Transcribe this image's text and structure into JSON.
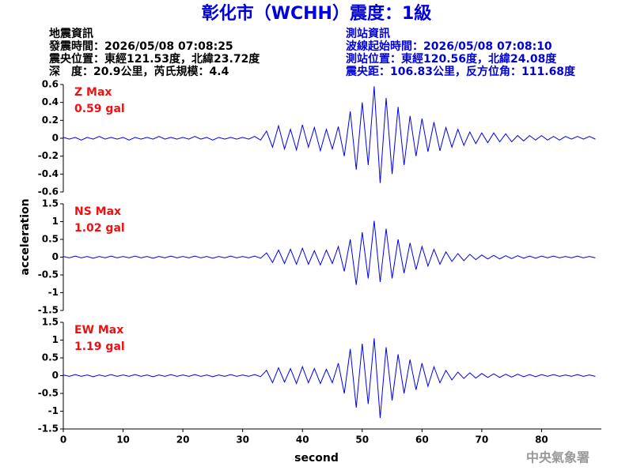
{
  "header": {
    "title": "彰化市（WCHH）震度：1級",
    "info_left": [
      "地震資訊",
      "發震時間：2026/05/08 07:08:25",
      "震央位置：東經121.53度，北緯23.72度",
      "深　度：20.9公里，芮氏規模：4.4"
    ],
    "info_right": [
      "測站資訊",
      "波線起始時間：2026/05/08 07:08:10",
      "測站位置：東經120.56度，北緯24.08度",
      "震央距：106.83公里，反方位角：111.68度"
    ],
    "watermark": "中央氣象署"
  },
  "chart_data": [
    {
      "type": "line",
      "annotations": [
        "Z Max",
        "0.59 gal"
      ],
      "color": "#0000ee",
      "xlim": [
        0,
        90
      ],
      "ylim": [
        -0.6,
        0.6
      ],
      "yticks": [
        0.6,
        0.4,
        0.2,
        0,
        -0.2,
        -0.4,
        -0.6
      ],
      "x": [
        0,
        1,
        2,
        3,
        4,
        5,
        6,
        7,
        8,
        9,
        10,
        11,
        12,
        13,
        14,
        15,
        16,
        17,
        18,
        19,
        20,
        21,
        22,
        23,
        24,
        25,
        26,
        27,
        28,
        29,
        30,
        31,
        32,
        33,
        34,
        35,
        36,
        37,
        38,
        39,
        40,
        41,
        42,
        43,
        44,
        45,
        46,
        47,
        48,
        49,
        50,
        51,
        52,
        53,
        54,
        55,
        56,
        57,
        58,
        59,
        60,
        61,
        62,
        63,
        64,
        65,
        66,
        67,
        68,
        69,
        70,
        71,
        72,
        73,
        74,
        75,
        76,
        77,
        78,
        79,
        80,
        81,
        82,
        83,
        84,
        85,
        86,
        87,
        88,
        89
      ],
      "values": [
        0.01,
        -0.01,
        0.01,
        -0.02,
        0.01,
        -0.01,
        0.02,
        -0.01,
        0.01,
        -0.01,
        0.01,
        -0.02,
        0.01,
        -0.01,
        0.01,
        -0.01,
        0.02,
        -0.01,
        0.01,
        -0.01,
        0.01,
        -0.01,
        0.02,
        -0.01,
        0.01,
        -0.02,
        0.01,
        -0.01,
        0.01,
        -0.01,
        0.01,
        -0.01,
        0.02,
        -0.02,
        0.08,
        -0.1,
        0.14,
        -0.12,
        0.1,
        -0.13,
        0.15,
        -0.1,
        0.12,
        -0.14,
        0.1,
        -0.12,
        0.13,
        -0.2,
        0.3,
        -0.35,
        0.4,
        -0.3,
        0.58,
        -0.5,
        0.45,
        -0.4,
        0.35,
        -0.3,
        0.25,
        -0.2,
        0.22,
        -0.15,
        0.18,
        -0.14,
        0.12,
        -0.1,
        0.1,
        -0.08,
        0.07,
        -0.06,
        0.06,
        -0.05,
        0.06,
        -0.04,
        0.05,
        -0.04,
        0.03,
        -0.03,
        0.03,
        -0.02,
        0.03,
        -0.02,
        0.02,
        -0.02,
        0.02,
        -0.01,
        0.02,
        -0.01,
        0.02,
        -0.01
      ]
    },
    {
      "type": "line",
      "annotations": [
        "NS Max",
        "1.02 gal"
      ],
      "color": "#0000ee",
      "y_label": "acceleration",
      "xlim": [
        0,
        90
      ],
      "ylim": [
        -1.5,
        1.5
      ],
      "yticks": [
        1.5,
        1,
        0.5,
        0,
        -0.5,
        -1,
        -1.5
      ],
      "x": [
        0,
        1,
        2,
        3,
        4,
        5,
        6,
        7,
        8,
        9,
        10,
        11,
        12,
        13,
        14,
        15,
        16,
        17,
        18,
        19,
        20,
        21,
        22,
        23,
        24,
        25,
        26,
        27,
        28,
        29,
        30,
        31,
        32,
        33,
        34,
        35,
        36,
        37,
        38,
        39,
        40,
        41,
        42,
        43,
        44,
        45,
        46,
        47,
        48,
        49,
        50,
        51,
        52,
        53,
        54,
        55,
        56,
        57,
        58,
        59,
        60,
        61,
        62,
        63,
        64,
        65,
        66,
        67,
        68,
        69,
        70,
        71,
        72,
        73,
        74,
        75,
        76,
        77,
        78,
        79,
        80,
        81,
        82,
        83,
        84,
        85,
        86,
        87,
        88,
        89
      ],
      "values": [
        0.02,
        -0.02,
        0.03,
        -0.02,
        0.02,
        -0.03,
        0.02,
        -0.02,
        0.03,
        -0.02,
        0.02,
        -0.02,
        0.03,
        -0.02,
        0.02,
        -0.03,
        0.02,
        -0.02,
        0.03,
        -0.02,
        0.02,
        -0.02,
        0.03,
        -0.02,
        0.02,
        -0.03,
        0.02,
        -0.02,
        0.03,
        -0.02,
        0.02,
        -0.02,
        0.03,
        -0.03,
        0.12,
        -0.15,
        0.2,
        -0.18,
        0.22,
        -0.2,
        0.25,
        -0.2,
        0.18,
        -0.22,
        0.2,
        -0.18,
        0.3,
        -0.4,
        0.5,
        -0.78,
        0.7,
        -0.6,
        1.02,
        -0.7,
        0.8,
        -0.6,
        0.5,
        -0.45,
        0.4,
        -0.35,
        0.3,
        -0.25,
        0.22,
        -0.2,
        0.15,
        -0.12,
        0.1,
        -0.1,
        0.08,
        -0.07,
        0.06,
        -0.05,
        0.05,
        -0.05,
        0.04,
        -0.04,
        0.04,
        -0.03,
        0.03,
        -0.03,
        0.03,
        -0.02,
        0.03,
        -0.02,
        0.02,
        -0.02,
        0.03,
        -0.02,
        0.02,
        -0.02
      ]
    },
    {
      "type": "line",
      "annotations": [
        "EW Max",
        "1.19 gal"
      ],
      "color": "#0000ee",
      "x_label": "second",
      "xlim": [
        0,
        90
      ],
      "xticks": [
        0,
        10,
        20,
        30,
        40,
        50,
        60,
        70,
        80
      ],
      "ylim": [
        -1.5,
        1.5
      ],
      "yticks": [
        1.5,
        1,
        0.5,
        0,
        -0.5,
        -1,
        -1.5
      ],
      "x": [
        0,
        1,
        2,
        3,
        4,
        5,
        6,
        7,
        8,
        9,
        10,
        11,
        12,
        13,
        14,
        15,
        16,
        17,
        18,
        19,
        20,
        21,
        22,
        23,
        24,
        25,
        26,
        27,
        28,
        29,
        30,
        31,
        32,
        33,
        34,
        35,
        36,
        37,
        38,
        39,
        40,
        41,
        42,
        43,
        44,
        45,
        46,
        47,
        48,
        49,
        50,
        51,
        52,
        53,
        54,
        55,
        56,
        57,
        58,
        59,
        60,
        61,
        62,
        63,
        64,
        65,
        66,
        67,
        68,
        69,
        70,
        71,
        72,
        73,
        74,
        75,
        76,
        77,
        78,
        79,
        80,
        81,
        82,
        83,
        84,
        85,
        86,
        87,
        88,
        89
      ],
      "values": [
        0.02,
        -0.02,
        0.03,
        -0.02,
        0.02,
        -0.03,
        0.02,
        -0.02,
        0.03,
        -0.02,
        0.02,
        -0.02,
        0.03,
        -0.02,
        0.02,
        -0.03,
        0.02,
        -0.02,
        0.03,
        -0.02,
        0.02,
        -0.02,
        0.03,
        -0.02,
        0.02,
        -0.03,
        0.02,
        -0.02,
        0.03,
        -0.02,
        0.02,
        -0.02,
        0.03,
        -0.03,
        0.15,
        -0.2,
        0.22,
        -0.18,
        0.2,
        -0.22,
        0.25,
        -0.2,
        0.2,
        -0.22,
        0.18,
        -0.2,
        0.35,
        -0.5,
        0.75,
        -0.9,
        0.9,
        -0.8,
        1.05,
        -1.19,
        0.8,
        -0.7,
        0.6,
        -0.5,
        0.45,
        -0.4,
        0.35,
        -0.3,
        0.25,
        -0.2,
        0.15,
        -0.12,
        0.1,
        -0.08,
        0.08,
        -0.07,
        0.06,
        -0.05,
        0.05,
        -0.05,
        0.04,
        -0.04,
        0.04,
        -0.03,
        0.03,
        -0.03,
        0.03,
        -0.02,
        0.03,
        -0.02,
        0.02,
        -0.02,
        0.03,
        -0.02,
        0.02,
        -0.02
      ]
    }
  ]
}
